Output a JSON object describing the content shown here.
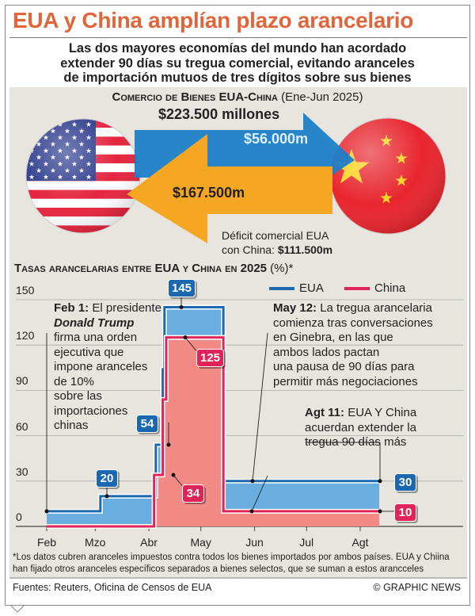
{
  "title": "EUA y China amplían plazo arancelario",
  "subtitle": [
    "Las dos mayores economías del mundo han acordado",
    "extender 90 días su tregua comercial, evitando aranceles",
    "de importación mutuos de tres dígitos sobre sus bienes"
  ],
  "trade": {
    "title": "Comercio de Bienes EUA-China",
    "period": "(Ene-Jun 2025)",
    "total": "$223.500 millones",
    "us_to_china": "$56.000m",
    "china_to_us": "$167.500m",
    "deficit_label_1": "Déficit comercial EUA",
    "deficit_label_2": "con China:",
    "deficit_value": "$111.500m"
  },
  "colors": {
    "title": "#e0653b",
    "eua": "#1b68b0",
    "china": "#e0245a",
    "eua_fill": "#6aaee0",
    "china_fill": "#f28b86",
    "arrow_blue": "#1e7fc8",
    "arrow_orange": "#f5a623"
  },
  "chart_data": {
    "type": "line",
    "step": true,
    "title": "Tasas arancelarias entre EUA y China en 2025",
    "unit": "(%)*",
    "ylim": [
      0,
      150
    ],
    "yticks": [
      0,
      30,
      60,
      90,
      120,
      150
    ],
    "xticks": [
      "Feb",
      "Mzo",
      "Abr",
      "May",
      "Jun",
      "Jul",
      "Agt"
    ],
    "xtick_dates": [
      "2025-02-01",
      "2025-03-01",
      "2025-04-01",
      "2025-05-01",
      "2025-06-01",
      "2025-07-01",
      "2025-08-01"
    ],
    "grid": true,
    "legend_position": "top-right",
    "series": [
      {
        "name": "EUA",
        "points": [
          [
            "2025-02-01",
            10
          ],
          [
            "2025-03-04",
            20
          ],
          [
            "2025-04-05",
            54
          ],
          [
            "2025-04-09",
            104
          ],
          [
            "2025-04-10",
            145
          ],
          [
            "2025-05-14",
            30
          ],
          [
            "2025-08-12",
            30
          ]
        ]
      },
      {
        "name": "China",
        "points": [
          [
            "2025-02-01",
            0
          ],
          [
            "2025-04-04",
            34
          ],
          [
            "2025-04-09",
            84
          ],
          [
            "2025-04-11",
            125
          ],
          [
            "2025-05-14",
            10
          ],
          [
            "2025-08-12",
            10
          ]
        ]
      }
    ],
    "labels": {
      "eua_20": "20",
      "eua_54": "54",
      "eua_145": "145",
      "eua_30": "30",
      "china_34": "34",
      "china_125": "125",
      "china_10": "10"
    },
    "annotations": {
      "feb1": {
        "date": "Feb 1:",
        "lines": [
          "El presidente",
          "Donald Trump",
          "firma una orden",
          "ejecutiva que",
          "impone aranceles",
          "de 10%",
          "sobre las",
          "importaciones",
          "chinas"
        ]
      },
      "may12": {
        "date": "May 12:",
        "lines": [
          "La tregua arancelaria",
          "comienza tras conversaciones",
          "en Ginebra, en las que",
          "ambos lados pactan",
          "una pausa de 90 días para",
          "permitir más negociaciones"
        ]
      },
      "agt11": {
        "date": "Agt 11:",
        "lines": [
          "EUA Y China",
          "acuerdan extender la",
          "tregua 90 días más"
        ]
      }
    }
  },
  "footnote": [
    "*Los datos cubren aranceles impuestos contra todos los bienes importados por ambos países. EUA y Chiina",
    "han fijado otros aranceles específicos separados a bienes selectos, que se suman a estos arancceles"
  ],
  "sources": "Fuentes: Reuters, Oficina de Censos de EUA",
  "credit": "© GRAPHIC NEWS"
}
